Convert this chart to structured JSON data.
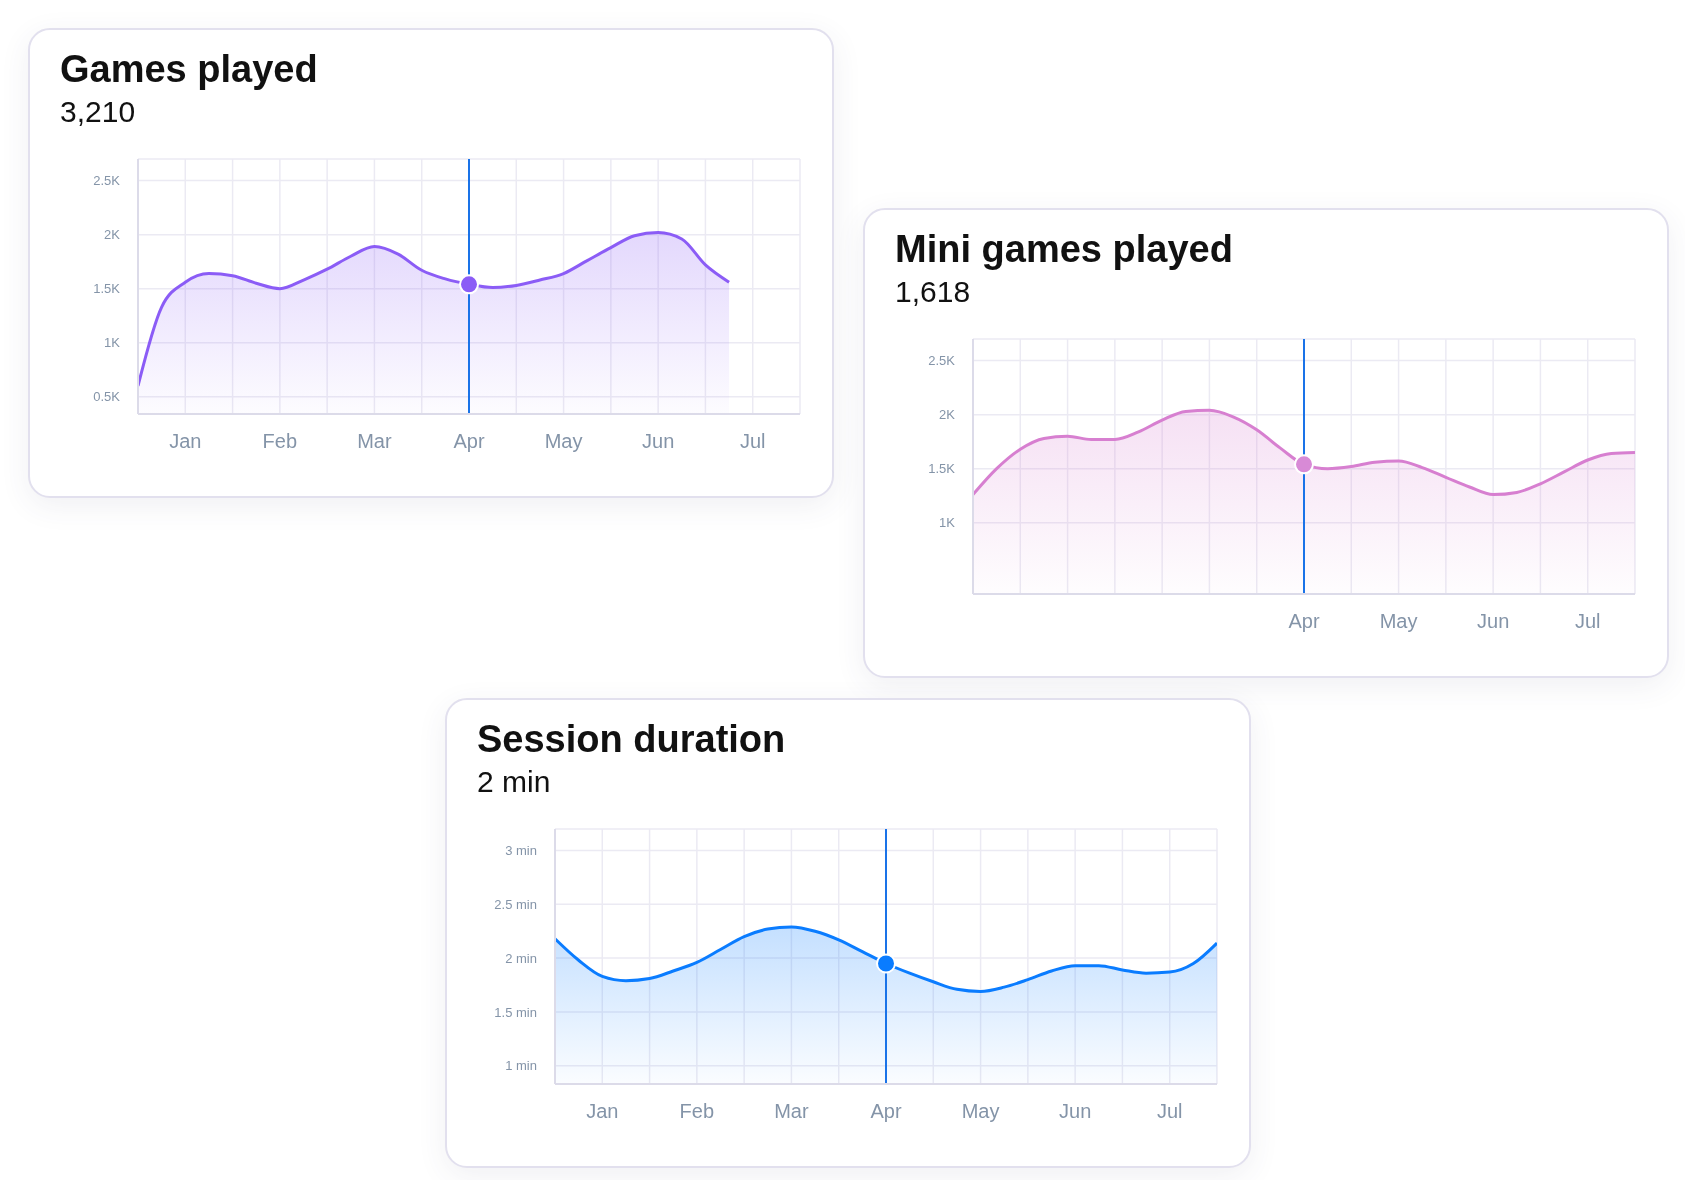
{
  "chart_data": [
    {
      "type": "area",
      "title": "Games played",
      "subtitle": "3,210",
      "categories": [
        null,
        null,
        "Jan",
        null,
        null,
        null,
        "Feb",
        null,
        null,
        null,
        "Mar",
        null,
        null,
        null,
        "Apr",
        null,
        null,
        null,
        "May",
        null,
        null,
        null,
        "Jun",
        null,
        null,
        null,
        "Jul",
        null,
        null
      ],
      "series": [
        {
          "color": "#8b5cf6",
          "values": [
            600,
            1330,
            1560,
            1640,
            1620,
            1550,
            1500,
            1580,
            1680,
            1800,
            1890,
            1820,
            1670,
            1590,
            1540,
            1510,
            1530,
            1580,
            1640,
            1760,
            1880,
            1990,
            2020,
            1960,
            1720,
            1560,
            null,
            null,
            null
          ]
        },
        {
          "type": "scatter",
          "x": [
            "Apr"
          ],
          "color": "#8b5cf6",
          "values": [
            1540
          ]
        }
      ],
      "ylim": [
        340,
        2700
      ],
      "yticks": [
        {
          "value": 500,
          "label": "0.5K"
        },
        {
          "value": 1000,
          "label": "1K"
        },
        {
          "value": 1500,
          "label": "1.5K"
        },
        {
          "value": 2000,
          "label": "2K"
        },
        {
          "value": 2500,
          "label": "2.5K"
        }
      ],
      "ref_lines": [
        {
          "axis": "x",
          "value": "Apr",
          "color": "#1a73e8"
        }
      ],
      "grid": true
    },
    {
      "type": "area",
      "title": "Mini games played",
      "subtitle": "1,618",
      "categories": [
        null,
        null,
        null,
        null,
        null,
        null,
        null,
        null,
        null,
        null,
        null,
        null,
        null,
        null,
        "Apr",
        null,
        null,
        null,
        "May",
        null,
        null,
        null,
        "Jun",
        null,
        null,
        null,
        "Jul",
        null,
        null
      ],
      "series": [
        {
          "color": "#d77fd0",
          "values": [
            1260,
            1500,
            1680,
            1780,
            1800,
            1770,
            1770,
            1840,
            1950,
            2030,
            2040,
            1980,
            1860,
            1690,
            1540,
            1500,
            1520,
            1560,
            1570,
            1510,
            1420,
            1330,
            1260,
            1280,
            1360,
            1470,
            1580,
            1640,
            1650
          ]
        },
        {
          "type": "scatter",
          "x": [
            "Apr"
          ],
          "color": "#d88ad6",
          "values": [
            1540
          ]
        }
      ],
      "ylim": [
        340,
        2700
      ],
      "yticks": [
        {
          "value": 1000,
          "label": "1K"
        },
        {
          "value": 1500,
          "label": "1.5K"
        },
        {
          "value": 2000,
          "label": "2K"
        },
        {
          "value": 2500,
          "label": "2.5K"
        }
      ],
      "ref_lines": [
        {
          "axis": "x",
          "value": "Apr",
          "color": "#1a73e8"
        }
      ],
      "grid": true
    },
    {
      "type": "area",
      "title": "Session duration",
      "subtitle": "2 min",
      "categories": [
        null,
        null,
        "Jan",
        null,
        null,
        null,
        "Feb",
        null,
        null,
        null,
        "Mar",
        null,
        null,
        null,
        "Apr",
        null,
        null,
        null,
        "May",
        null,
        null,
        null,
        "Jun",
        null,
        null,
        null,
        "Jul",
        null,
        null
      ],
      "series": [
        {
          "color": "#0a7cff",
          "values": [
            2.18,
            1.98,
            1.83,
            1.79,
            1.81,
            1.88,
            1.96,
            2.08,
            2.2,
            2.27,
            2.29,
            2.25,
            2.17,
            2.06,
            1.95,
            1.86,
            1.78,
            1.71,
            1.69,
            1.73,
            1.8,
            1.88,
            1.93,
            1.93,
            1.89,
            1.86,
            1.87,
            1.95,
            2.14
          ]
        },
        {
          "type": "scatter",
          "x": [
            "Apr"
          ],
          "color": "#0a7cff",
          "values": [
            1.95
          ]
        }
      ],
      "ylim": [
        0.83,
        3.2
      ],
      "yticks": [
        {
          "value": 1,
          "label": "1 min"
        },
        {
          "value": 1.5,
          "label": "1.5 min"
        },
        {
          "value": 2,
          "label": "2 min"
        },
        {
          "value": 2.5,
          "label": "2.5 min"
        },
        {
          "value": 3,
          "label": "3 min"
        }
      ],
      "ref_lines": [
        {
          "axis": "x",
          "value": "Apr",
          "color": "#1a73e8"
        }
      ],
      "grid": true
    }
  ]
}
